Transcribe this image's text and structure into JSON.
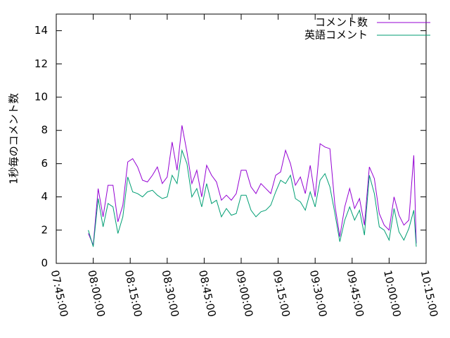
{
  "chart_data": {
    "type": "line",
    "y_label": "1秒毎のコメント数",
    "x": [
      "07:58:00",
      "08:00:00",
      "08:02:00",
      "08:04:00",
      "08:06:00",
      "08:08:00",
      "08:10:00",
      "08:12:00",
      "08:14:00",
      "08:16:00",
      "08:18:00",
      "08:20:00",
      "08:22:00",
      "08:24:00",
      "08:26:00",
      "08:28:00",
      "08:30:00",
      "08:32:00",
      "08:34:00",
      "08:36:00",
      "08:38:00",
      "08:40:00",
      "08:42:00",
      "08:44:00",
      "08:46:00",
      "08:48:00",
      "08:50:00",
      "08:52:00",
      "08:54:00",
      "08:56:00",
      "08:58:00",
      "09:00:00",
      "09:02:00",
      "09:04:00",
      "09:06:00",
      "09:08:00",
      "09:10:00",
      "09:12:00",
      "09:14:00",
      "09:16:00",
      "09:18:00",
      "09:20:00",
      "09:22:00",
      "09:24:00",
      "09:26:00",
      "09:28:00",
      "09:30:00",
      "09:32:00",
      "09:34:00",
      "09:36:00",
      "09:38:00",
      "09:40:00",
      "09:42:00",
      "09:44:00",
      "09:46:00",
      "09:48:00",
      "09:50:00",
      "09:52:00",
      "09:54:00",
      "09:56:00",
      "09:58:00",
      "10:00:00",
      "10:02:00",
      "10:04:00",
      "10:06:00",
      "10:08:00",
      "10:10:00",
      "10:11:00"
    ],
    "series": [
      {
        "name": "コメント数",
        "color": "#9400d3",
        "values": [
          1.8,
          1.1,
          4.5,
          2.8,
          4.7,
          4.7,
          2.5,
          3.5,
          6.1,
          6.3,
          5.8,
          5.0,
          4.9,
          5.3,
          5.8,
          4.8,
          5.2,
          7.3,
          5.6,
          8.3,
          6.7,
          4.8,
          5.6,
          4.0,
          5.9,
          5.3,
          4.9,
          3.8,
          4.1,
          3.8,
          4.2,
          5.6,
          5.6,
          4.6,
          4.2,
          4.8,
          4.5,
          4.2,
          5.3,
          5.5,
          6.8,
          6.0,
          4.7,
          5.2,
          4.2,
          5.9,
          4.0,
          7.2,
          7.0,
          6.9,
          3.5,
          1.6,
          3.4,
          4.5,
          3.3,
          3.9,
          2.3,
          5.8,
          5.1,
          3.0,
          2.3,
          2.0,
          4.0,
          2.9,
          2.3,
          2.6,
          6.5,
          1.2
        ]
      },
      {
        "name": "英語コメント",
        "color": "#009e73",
        "values": [
          2.0,
          1.0,
          3.9,
          2.2,
          3.6,
          3.4,
          1.8,
          2.8,
          5.2,
          4.3,
          4.2,
          4.0,
          4.3,
          4.4,
          4.1,
          3.9,
          4.0,
          5.3,
          4.8,
          6.8,
          6.0,
          4.0,
          4.5,
          3.4,
          4.8,
          3.6,
          3.8,
          2.8,
          3.3,
          2.9,
          3.0,
          4.1,
          4.1,
          3.2,
          2.8,
          3.1,
          3.2,
          3.5,
          4.3,
          5.0,
          4.8,
          5.3,
          3.9,
          3.7,
          3.2,
          4.3,
          3.4,
          5.0,
          5.4,
          4.6,
          3.0,
          1.3,
          2.6,
          3.4,
          2.6,
          3.2,
          1.7,
          5.3,
          4.2,
          2.2,
          2.0,
          1.4,
          3.3,
          1.9,
          1.4,
          2.1,
          3.2,
          1.0
        ]
      }
    ],
    "xlim": [
      "07:45:00",
      "10:15:00"
    ],
    "xticks": [
      "07:45:00",
      "08:00:00",
      "08:15:00",
      "08:30:00",
      "08:45:00",
      "09:00:00",
      "09:15:00",
      "09:30:00",
      "09:45:00",
      "10:00:00",
      "10:15:00"
    ],
    "ylim": [
      0,
      15
    ],
    "yticks": [
      0,
      2,
      4,
      6,
      8,
      10,
      12,
      14
    ],
    "legend": "top-right"
  }
}
